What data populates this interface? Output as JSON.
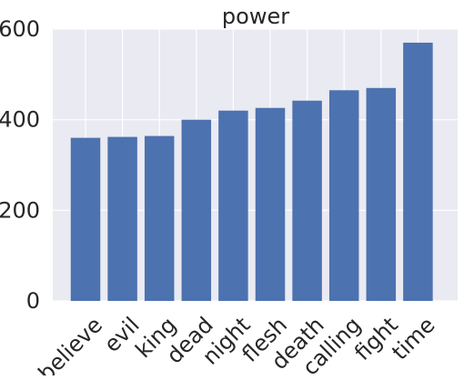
{
  "chart_data": {
    "type": "bar",
    "title": "power",
    "categories": [
      "believe",
      "evil",
      "king",
      "dead",
      "night",
      "flesh",
      "death",
      "calling",
      "fight",
      "time"
    ],
    "values": [
      360,
      362,
      364,
      400,
      420,
      426,
      442,
      465,
      470,
      570
    ],
    "xlabel": "",
    "ylabel": "",
    "ylim": [
      0,
      600
    ],
    "yticks": [
      0,
      200,
      400,
      600
    ],
    "grid": true,
    "legend": "none",
    "colors": {
      "bar": "#4c72b0",
      "plot_background": "#eaeaf2",
      "grid": "#ffffff",
      "text": "#262626"
    }
  }
}
